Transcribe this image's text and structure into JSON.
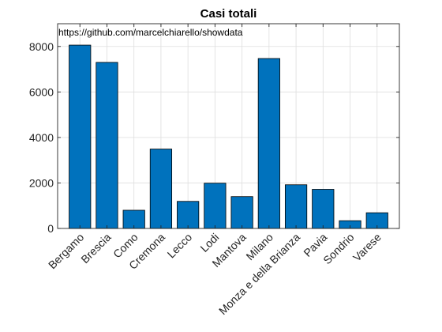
{
  "chart_data": {
    "type": "bar",
    "title": "Casi totali",
    "annotation": "https://github.com/marcelchiarello/showdata",
    "categories": [
      "Bergamo",
      "Brescia",
      "Como",
      "Cremona",
      "Lecco",
      "Lodi",
      "Mantova",
      "Milano",
      "Monza e della Brianza",
      "Pavia",
      "Sondrio",
      "Varese"
    ],
    "values": [
      8060,
      7300,
      800,
      3490,
      1190,
      1990,
      1400,
      7470,
      1920,
      1720,
      340,
      690
    ],
    "ylim": [
      0,
      9000
    ],
    "yticks": [
      0,
      2000,
      4000,
      6000,
      8000
    ],
    "ytick_labels": [
      "0",
      "2000",
      "4000",
      "6000",
      "8000"
    ],
    "grid": true,
    "bar_color": "#0072bd"
  }
}
